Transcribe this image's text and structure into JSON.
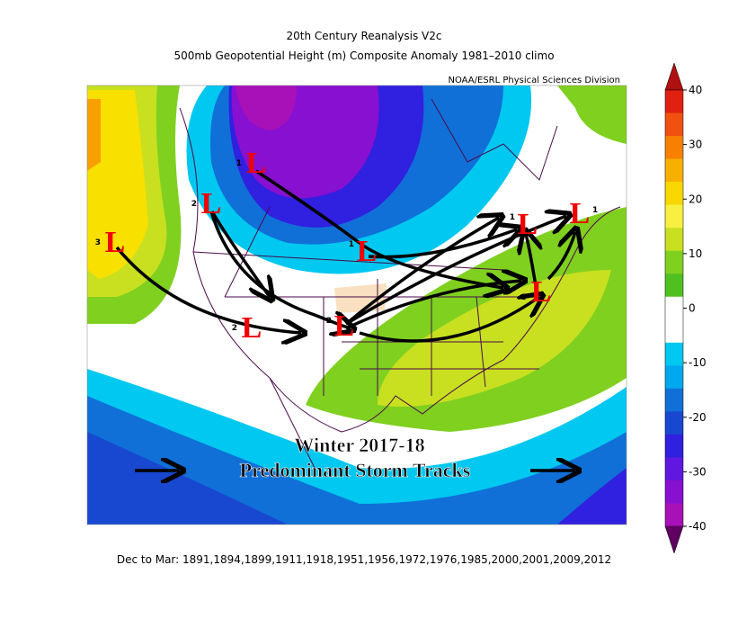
{
  "title": "20th Century Reanalysis V2c",
  "subtitle": "500mb Geopotential Height (m) Composite Anomaly 1981–2010 climo",
  "credit": "NOAA/ESRL Physical Sciences Division",
  "footer": "Dec to Mar: 1891,1894,1899,1911,1918,1951,1956,1972,1976,1985,2000,2001,2009,2012",
  "annotation": {
    "line1": "Winter 2017-18",
    "line2": "Predominant Storm Tracks"
  },
  "lows": [
    {
      "label": "L",
      "number": "1"
    },
    {
      "label": "L",
      "number": "2"
    },
    {
      "label": "L",
      "number": "3"
    },
    {
      "label": "L",
      "number": "1"
    },
    {
      "label": "L",
      "number": "2"
    },
    {
      "label": "L",
      "number": "2"
    },
    {
      "label": "L",
      "number": "1"
    },
    {
      "label": "L",
      "number": "1"
    },
    {
      "label": "L",
      "number": "3"
    }
  ],
  "colorbar": {
    "ticks": [
      40,
      30,
      20,
      10,
      0,
      -10,
      -20,
      -30,
      -40
    ],
    "colors": [
      "#e02010",
      "#f05010",
      "#f88000",
      "#f8b000",
      "#f8d800",
      "#f8f040",
      "#c8e020",
      "#80d020",
      "#50c020",
      "#ffffff",
      "#ffffff",
      "#00c8f0",
      "#00a8f0",
      "#1070d8",
      "#1848d0",
      "#3020e0",
      "#6018e0",
      "#8810d0",
      "#a810b8"
    ]
  }
}
